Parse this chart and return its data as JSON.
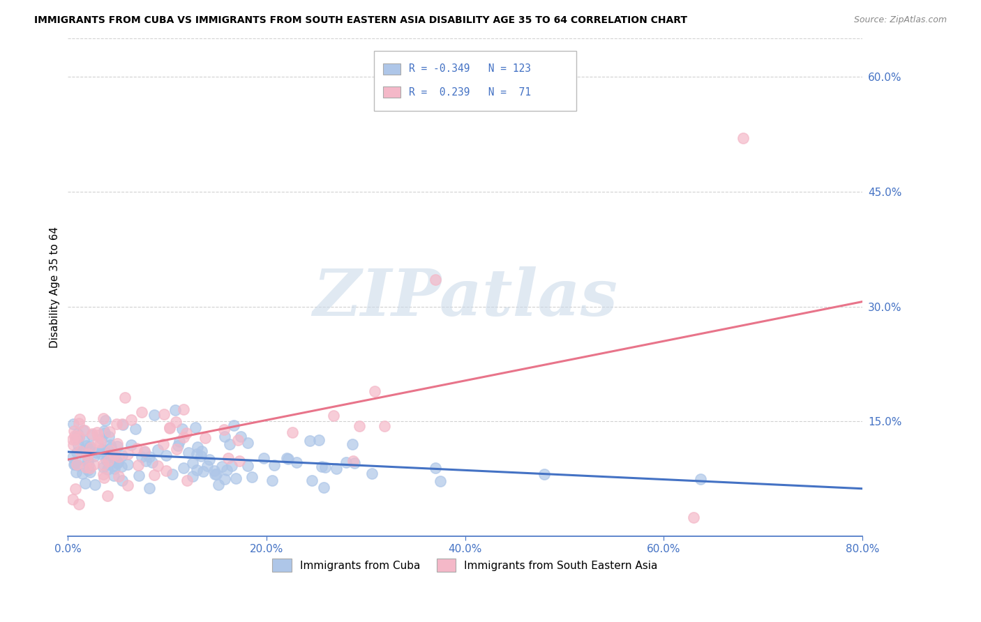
{
  "title": "IMMIGRANTS FROM CUBA VS IMMIGRANTS FROM SOUTH EASTERN ASIA DISABILITY AGE 35 TO 64 CORRELATION CHART",
  "source": "Source: ZipAtlas.com",
  "ylabel": "Disability Age 35 to 64",
  "xlim": [
    0.0,
    0.8
  ],
  "ylim": [
    0.0,
    0.65
  ],
  "xticks": [
    0.0,
    0.2,
    0.4,
    0.6,
    0.8
  ],
  "yticks_right": [
    0.15,
    0.3,
    0.45,
    0.6
  ],
  "blue_R": -0.349,
  "blue_N": 123,
  "pink_R": 0.239,
  "pink_N": 71,
  "blue_scatter_color": "#aec6e8",
  "pink_scatter_color": "#f4b8c8",
  "blue_line_color": "#4472c4",
  "pink_line_color": "#e8748a",
  "legend_blue_label": "Immigrants from Cuba",
  "legend_pink_label": "Immigrants from South Eastern Asia",
  "watermark_text": "ZIPatlas",
  "background_color": "#ffffff",
  "grid_color": "#cccccc",
  "axis_color": "#4472c4",
  "title_color": "#000000",
  "source_color": "#888888"
}
